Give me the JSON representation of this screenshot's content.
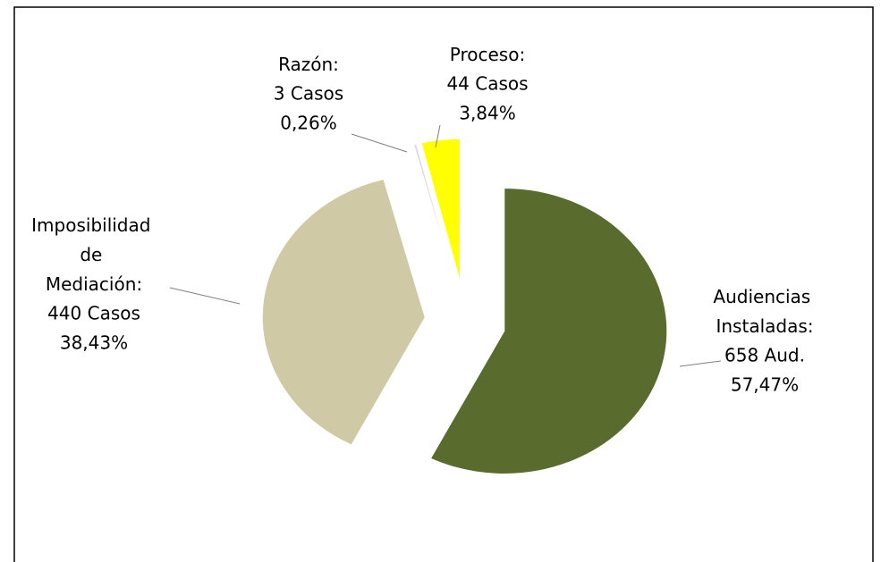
{
  "chart_data": {
    "type": "pie",
    "categories": [
      "Audiencias Instaladas:",
      "Imposibilidad de Mediación:",
      "Razón:",
      "Proceso:"
    ],
    "counts": [
      658,
      440,
      3,
      44
    ],
    "count_labels": [
      "658 Aud.",
      "440 Casos",
      "3 Casos",
      "44 Casos"
    ],
    "values": [
      57.47,
      38.43,
      0.26,
      3.84
    ],
    "value_labels": [
      "57,47%",
      "38,43%",
      "0,26%",
      "3,84%"
    ],
    "colors": [
      "#5a6b2e",
      "#cfc9a5",
      "#d9d9d9",
      "#ffff00"
    ]
  }
}
